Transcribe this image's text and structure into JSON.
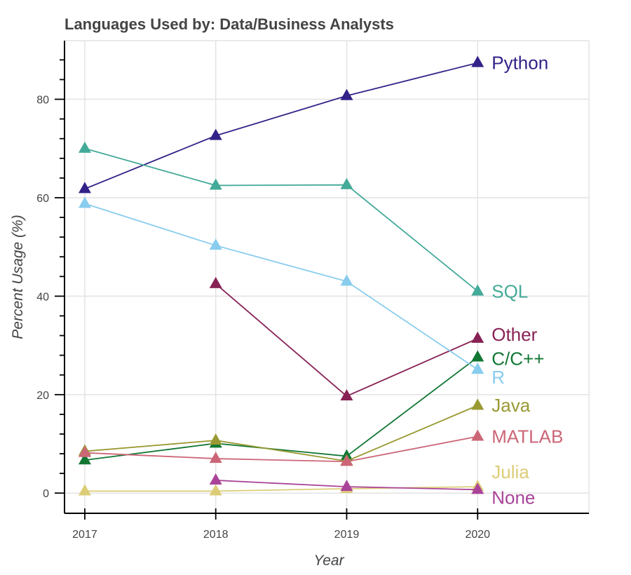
{
  "chart_data": {
    "type": "line",
    "title": "Languages Used by: Data/Business Analysts",
    "xlabel": "Year",
    "ylabel": "Percent Usage (%)",
    "x": [
      2017,
      2018,
      2019,
      2020
    ],
    "x_tick_labels": [
      "2017",
      "2018",
      "2019",
      "2020"
    ],
    "y_ticks": [
      0,
      20,
      40,
      60,
      80
    ],
    "y_tick_labels": [
      "0",
      "20",
      "40",
      "60",
      "80"
    ],
    "y_minor_step": 4,
    "xlim": [
      2016.845,
      2020.85
    ],
    "ylim": [
      -4.1,
      91.9
    ],
    "grid": true,
    "legend": "direct labels at right end of each line",
    "marker": "triangle",
    "series": [
      {
        "name": "Python",
        "color": "#332288",
        "values": [
          61.8,
          72.6,
          80.7,
          87.4
        ]
      },
      {
        "name": "SQL",
        "color": "#44AA99",
        "values": [
          70.0,
          62.5,
          62.6,
          41.0
        ]
      },
      {
        "name": "Other",
        "color": "#882255",
        "values": [
          null,
          42.5,
          19.7,
          31.4
        ]
      },
      {
        "name": "C/C++",
        "color": "#117733",
        "values": [
          6.7,
          10.1,
          7.5,
          27.6
        ]
      },
      {
        "name": "R",
        "color": "#88CCEE",
        "values": [
          58.8,
          50.3,
          43.0,
          25.1
        ]
      },
      {
        "name": "Java",
        "color": "#999933",
        "values": [
          8.5,
          10.7,
          6.5,
          17.8
        ]
      },
      {
        "name": "MATLAB",
        "color": "#CC6677",
        "values": [
          8.2,
          7.0,
          6.4,
          11.5
        ]
      },
      {
        "name": "Julia",
        "color": "#DDCC77",
        "values": [
          0.4,
          0.4,
          0.9,
          1.3
        ]
      },
      {
        "name": "None",
        "color": "#AA4499",
        "values": [
          null,
          2.6,
          1.3,
          0.7
        ]
      }
    ]
  }
}
